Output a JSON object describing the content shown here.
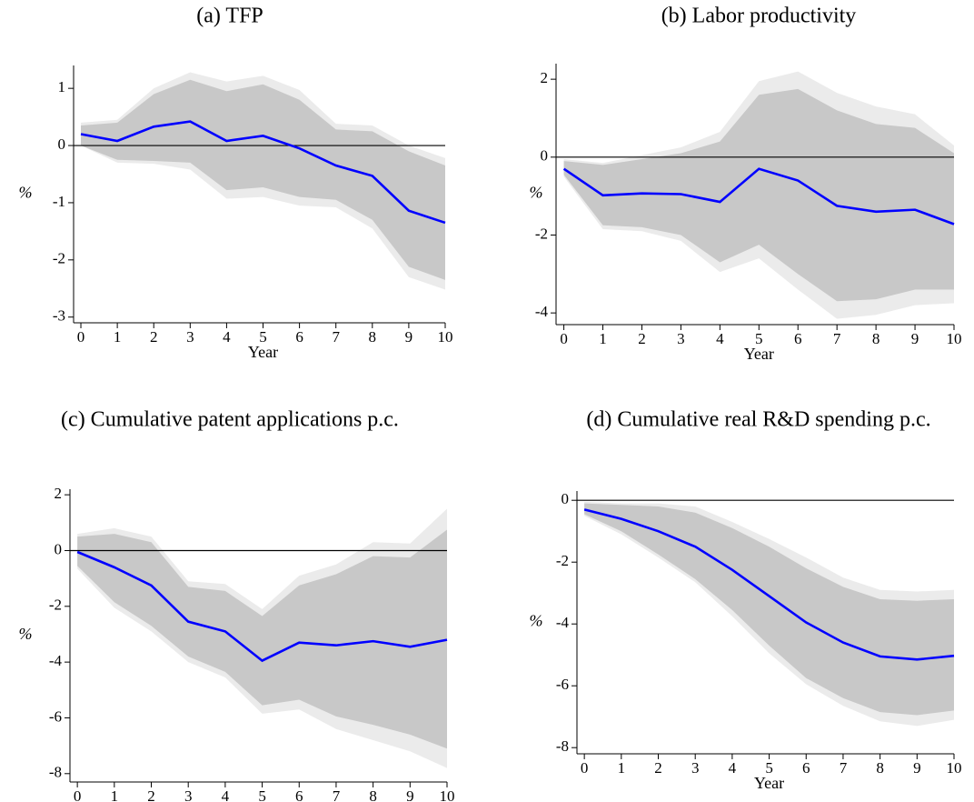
{
  "chart_data": [
    {
      "type": "line",
      "title": "(a) TFP",
      "xlabel": "Year",
      "ylabel": "%",
      "x": [
        0,
        1,
        2,
        3,
        4,
        5,
        6,
        7,
        8,
        9,
        10
      ],
      "xlim": [
        -0.2,
        10
      ],
      "xticks": [
        0,
        1,
        2,
        3,
        4,
        5,
        6,
        7,
        8,
        9,
        10
      ],
      "ylim": [
        -3.1,
        1.4
      ],
      "yticks": [
        -3,
        -2,
        -1,
        0,
        1
      ],
      "reference_line": 0,
      "values": [
        0.2,
        0.08,
        0.33,
        0.42,
        0.08,
        0.17,
        -0.05,
        -0.35,
        -0.53,
        -1.14,
        -1.35
      ],
      "color": "#0000ff",
      "bands": [
        {
          "color": "#ebebeb",
          "upper": [
            0.4,
            0.45,
            1.0,
            1.28,
            1.12,
            1.22,
            0.97,
            0.38,
            0.35,
            0.0,
            -0.22
          ],
          "lower": [
            0,
            -0.3,
            -0.32,
            -0.42,
            -0.93,
            -0.9,
            -1.05,
            -1.08,
            -1.45,
            -2.3,
            -2.52
          ]
        },
        {
          "color": "#c8c8c8",
          "upper": [
            0.35,
            0.4,
            0.9,
            1.15,
            0.95,
            1.07,
            0.8,
            0.28,
            0.25,
            -0.1,
            -0.35
          ],
          "lower": [
            0,
            -0.25,
            -0.27,
            -0.3,
            -0.78,
            -0.73,
            -0.9,
            -0.95,
            -1.3,
            -2.12,
            -2.35
          ]
        }
      ]
    },
    {
      "type": "line",
      "title": "(b) Labor productivity",
      "xlabel": "Year",
      "ylabel": "%",
      "x": [
        0,
        1,
        2,
        3,
        4,
        5,
        6,
        7,
        8,
        9,
        10
      ],
      "xlim": [
        -0.2,
        10
      ],
      "xticks": [
        0,
        1,
        2,
        3,
        4,
        5,
        6,
        7,
        8,
        9,
        10
      ],
      "ylim": [
        -4.3,
        2.4
      ],
      "yticks": [
        -4,
        -2,
        0,
        2
      ],
      "reference_line": 0,
      "values": [
        -0.3,
        -0.98,
        -0.93,
        -0.95,
        -1.15,
        -0.3,
        -0.6,
        -1.25,
        -1.4,
        -1.35,
        -1.72
      ],
      "color": "#0000ff",
      "bands": [
        {
          "color": "#ebebeb",
          "upper": [
            -0.05,
            -0.15,
            0.05,
            0.25,
            0.65,
            1.95,
            2.2,
            1.65,
            1.3,
            1.1,
            0.3
          ],
          "lower": [
            -0.5,
            -1.85,
            -1.9,
            -2.15,
            -2.95,
            -2.6,
            -3.4,
            -4.15,
            -4.05,
            -3.8,
            -3.75
          ]
        },
        {
          "color": "#c8c8c8",
          "upper": [
            -0.1,
            -0.2,
            -0.05,
            0.1,
            0.4,
            1.6,
            1.75,
            1.2,
            0.85,
            0.75,
            0.1
          ],
          "lower": [
            -0.45,
            -1.75,
            -1.8,
            -2.0,
            -2.7,
            -2.25,
            -3.0,
            -3.7,
            -3.65,
            -3.4,
            -3.4
          ]
        }
      ]
    },
    {
      "type": "line",
      "title": "(c) Cumulative patent applications p.c.",
      "xlabel": "Year",
      "ylabel": "%",
      "x": [
        0,
        1,
        2,
        3,
        4,
        5,
        6,
        7,
        8,
        9,
        10
      ],
      "xlim": [
        -0.2,
        10
      ],
      "xticks": [
        0,
        1,
        2,
        3,
        4,
        5,
        6,
        7,
        8,
        9,
        10
      ],
      "ylim": [
        -8.3,
        2.2
      ],
      "yticks": [
        -8,
        -6,
        -4,
        -2,
        0,
        2
      ],
      "reference_line": 0,
      "values": [
        -0.05,
        -0.6,
        -1.25,
        -2.55,
        -2.9,
        -3.95,
        -3.3,
        -3.4,
        -3.25,
        -3.45,
        -3.2
      ],
      "color": "#0000ff",
      "bands": [
        {
          "color": "#ebebeb",
          "upper": [
            0.6,
            0.8,
            0.5,
            -1.1,
            -1.2,
            -2.1,
            -0.9,
            -0.5,
            0.3,
            0.25,
            1.5
          ],
          "lower": [
            -0.65,
            -2.05,
            -2.9,
            -4.0,
            -4.55,
            -5.85,
            -5.7,
            -6.4,
            -6.8,
            -7.2,
            -7.8
          ]
        },
        {
          "color": "#c8c8c8",
          "upper": [
            0.5,
            0.6,
            0.3,
            -1.3,
            -1.45,
            -2.35,
            -1.25,
            -0.85,
            -0.2,
            -0.25,
            0.75
          ],
          "lower": [
            -0.55,
            -1.85,
            -2.7,
            -3.8,
            -4.35,
            -5.55,
            -5.35,
            -5.95,
            -6.25,
            -6.6,
            -7.1
          ]
        }
      ]
    },
    {
      "type": "line",
      "title": "(d) Cumulative real R&D spending p.c.",
      "xlabel": "Year",
      "ylabel": "%",
      "x": [
        0,
        1,
        2,
        3,
        4,
        5,
        6,
        7,
        8,
        9,
        10
      ],
      "xlim": [
        -0.2,
        10
      ],
      "xticks": [
        0,
        1,
        2,
        3,
        4,
        5,
        6,
        7,
        8,
        9,
        10
      ],
      "ylim": [
        -8.2,
        0.3
      ],
      "yticks": [
        -8,
        -6,
        -4,
        -2,
        0
      ],
      "reference_line": 0,
      "values": [
        -0.3,
        -0.6,
        -1.0,
        -1.5,
        -2.25,
        -3.1,
        -3.95,
        -4.6,
        -5.05,
        -5.15,
        -5.03
      ],
      "color": "#0000ff",
      "bands": [
        {
          "color": "#ebebeb",
          "upper": [
            -0.05,
            -0.1,
            -0.1,
            -0.2,
            -0.7,
            -1.25,
            -1.85,
            -2.5,
            -2.9,
            -2.95,
            -2.9
          ],
          "lower": [
            -0.5,
            -1.1,
            -1.85,
            -2.65,
            -3.75,
            -4.95,
            -5.95,
            -6.65,
            -7.15,
            -7.3,
            -7.1
          ]
        },
        {
          "color": "#c8c8c8",
          "upper": [
            -0.1,
            -0.15,
            -0.2,
            -0.4,
            -0.9,
            -1.5,
            -2.2,
            -2.8,
            -3.2,
            -3.25,
            -3.2
          ],
          "lower": [
            -0.45,
            -1.0,
            -1.75,
            -2.55,
            -3.55,
            -4.7,
            -5.75,
            -6.4,
            -6.85,
            -6.95,
            -6.8
          ]
        }
      ]
    }
  ]
}
